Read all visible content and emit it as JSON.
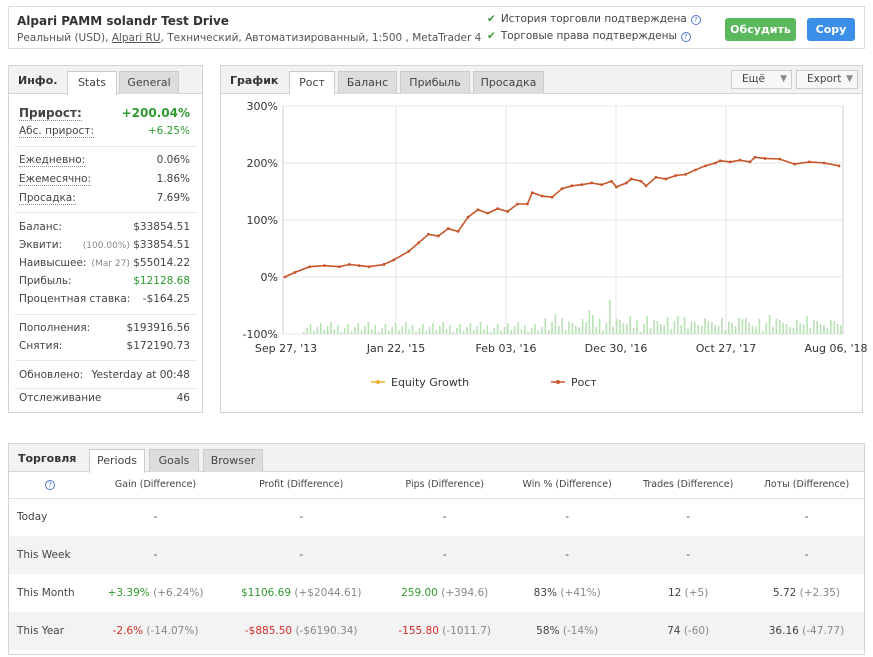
{
  "header": {
    "title": "Alpari PAMM solandr Test Drive",
    "subtitle_pre": "Реальный (USD), ",
    "broker_link": "Alpari RU",
    "subtitle_post": ", Технический, Автоматизированный, 1:500 , MetaTrader 4",
    "verified_history": "История торговли подтверждена",
    "verified_rights": "Торговые права подтверждены",
    "discuss_label": "Обсудить",
    "copy_label": "Copy"
  },
  "info": {
    "title": "Инфо.",
    "tabs": [
      "Stats",
      "General"
    ],
    "gain_label": "Прирост:",
    "gain_value": "+200.04%",
    "abs_gain_label": "Абс. прирост:",
    "abs_gain_value": "+6.25%",
    "daily_label": "Ежедневно:",
    "daily_value": "0.06%",
    "monthly_label": "Ежемесячно:",
    "monthly_value": "1.86%",
    "drawdown_label": "Просадка:",
    "drawdown_value": "7.69%",
    "balance_label": "Баланс:",
    "balance_value": "$33854.51",
    "equity_label": "Эквити:",
    "equity_pct": "(100.00%)",
    "equity_value": "$33854.51",
    "highest_label": "Наивысшее:",
    "highest_date": "(Mar 27)",
    "highest_value": "$55014.22",
    "profit_label": "Прибыль:",
    "profit_value": "$12128.68",
    "interest_label": "Процентная ставка:",
    "interest_value": "-$164.25",
    "deposits_label": "Пополнения:",
    "deposits_value": "$193916.56",
    "withdrawals_label": "Снятия:",
    "withdrawals_value": "$172190.73",
    "updated_label": "Обновлено:",
    "updated_value": "Yesterday at 00:48",
    "tracking_label": "Отслеживание",
    "tracking_value": "46"
  },
  "chart_panel": {
    "title": "График",
    "tabs": [
      "Рост",
      "Баланс",
      "Прибыль",
      "Просадка"
    ],
    "more_label": "Ещё",
    "export_label": "Export"
  },
  "chart_data": {
    "type": "line",
    "yticks": [
      "300%",
      "200%",
      "100%",
      "0%",
      "-100%"
    ],
    "xticks": [
      "Sep 27, '13",
      "Jan 22, '15",
      "Feb 03, '16",
      "Dec 30, '16",
      "Oct 27, '17",
      "Aug 06, '18"
    ],
    "ylim": [
      -100,
      300
    ],
    "series": [
      {
        "name": "Equity Growth",
        "color": "#f0b030"
      },
      {
        "name": "Рост",
        "color": "#c8552a",
        "points": [
          [
            0,
            0
          ],
          [
            0.02,
            8
          ],
          [
            0.05,
            18
          ],
          [
            0.08,
            20
          ],
          [
            0.11,
            18
          ],
          [
            0.13,
            22
          ],
          [
            0.15,
            20
          ],
          [
            0.17,
            18
          ],
          [
            0.2,
            22
          ],
          [
            0.22,
            30
          ],
          [
            0.25,
            45
          ],
          [
            0.27,
            60
          ],
          [
            0.29,
            75
          ],
          [
            0.31,
            72
          ],
          [
            0.33,
            85
          ],
          [
            0.35,
            80
          ],
          [
            0.37,
            105
          ],
          [
            0.39,
            118
          ],
          [
            0.41,
            112
          ],
          [
            0.43,
            120
          ],
          [
            0.45,
            115
          ],
          [
            0.47,
            128
          ],
          [
            0.49,
            128
          ],
          [
            0.5,
            148
          ],
          [
            0.52,
            142
          ],
          [
            0.54,
            140
          ],
          [
            0.56,
            155
          ],
          [
            0.58,
            160
          ],
          [
            0.6,
            162
          ],
          [
            0.62,
            165
          ],
          [
            0.64,
            162
          ],
          [
            0.66,
            168
          ],
          [
            0.67,
            158
          ],
          [
            0.69,
            165
          ],
          [
            0.7,
            172
          ],
          [
            0.72,
            168
          ],
          [
            0.73,
            160
          ],
          [
            0.75,
            175
          ],
          [
            0.77,
            172
          ],
          [
            0.79,
            178
          ],
          [
            0.81,
            180
          ],
          [
            0.83,
            188
          ],
          [
            0.85,
            195
          ],
          [
            0.87,
            200
          ],
          [
            0.88,
            204
          ],
          [
            0.9,
            202
          ],
          [
            0.92,
            205
          ],
          [
            0.94,
            202
          ],
          [
            0.95,
            210
          ],
          [
            0.97,
            208
          ],
          [
            1.0,
            207
          ],
          [
            1.03,
            198
          ],
          [
            1.06,
            202
          ],
          [
            1.09,
            200
          ],
          [
            1.12,
            195
          ]
        ]
      }
    ],
    "volume_bars_note": "light green daily volume bars near -100% baseline"
  },
  "trade": {
    "title": "Торговля",
    "tabs": [
      "Periods",
      "Goals",
      "Browser"
    ],
    "columns": [
      "Gain (Difference)",
      "Profit (Difference)",
      "Pips (Difference)",
      "Win % (Difference)",
      "Trades (Difference)",
      "Лоты (Difference)"
    ],
    "rows": [
      {
        "period": "Today",
        "cells": [
          [
            "-",
            ""
          ],
          [
            "-",
            ""
          ],
          [
            "-",
            ""
          ],
          [
            "-",
            ""
          ],
          [
            "-",
            ""
          ],
          [
            "-",
            ""
          ]
        ]
      },
      {
        "period": "This Week",
        "cells": [
          [
            "-",
            ""
          ],
          [
            "-",
            ""
          ],
          [
            "-",
            ""
          ],
          [
            "-",
            ""
          ],
          [
            "-",
            ""
          ],
          [
            "-",
            ""
          ]
        ]
      },
      {
        "period": "This Month",
        "cells": [
          [
            "+3.39%",
            "(+6.24%)"
          ],
          [
            "$1106.69",
            "(+$2044.61)"
          ],
          [
            "259.00",
            "(+394.6)"
          ],
          [
            "83%",
            "(+41%)"
          ],
          [
            "12",
            "(+5)"
          ],
          [
            "5.72",
            "(+2.35)"
          ]
        ]
      },
      {
        "period": "This Year",
        "cells": [
          [
            "-2.6%",
            "(-14.07%)"
          ],
          [
            "-$885.50",
            "(-$6190.34)"
          ],
          [
            "-155.80",
            "(-1011.7)"
          ],
          [
            "58%",
            "(-14%)"
          ],
          [
            "74",
            "(-60)"
          ],
          [
            "36.16",
            "(-47.77)"
          ]
        ]
      }
    ]
  }
}
